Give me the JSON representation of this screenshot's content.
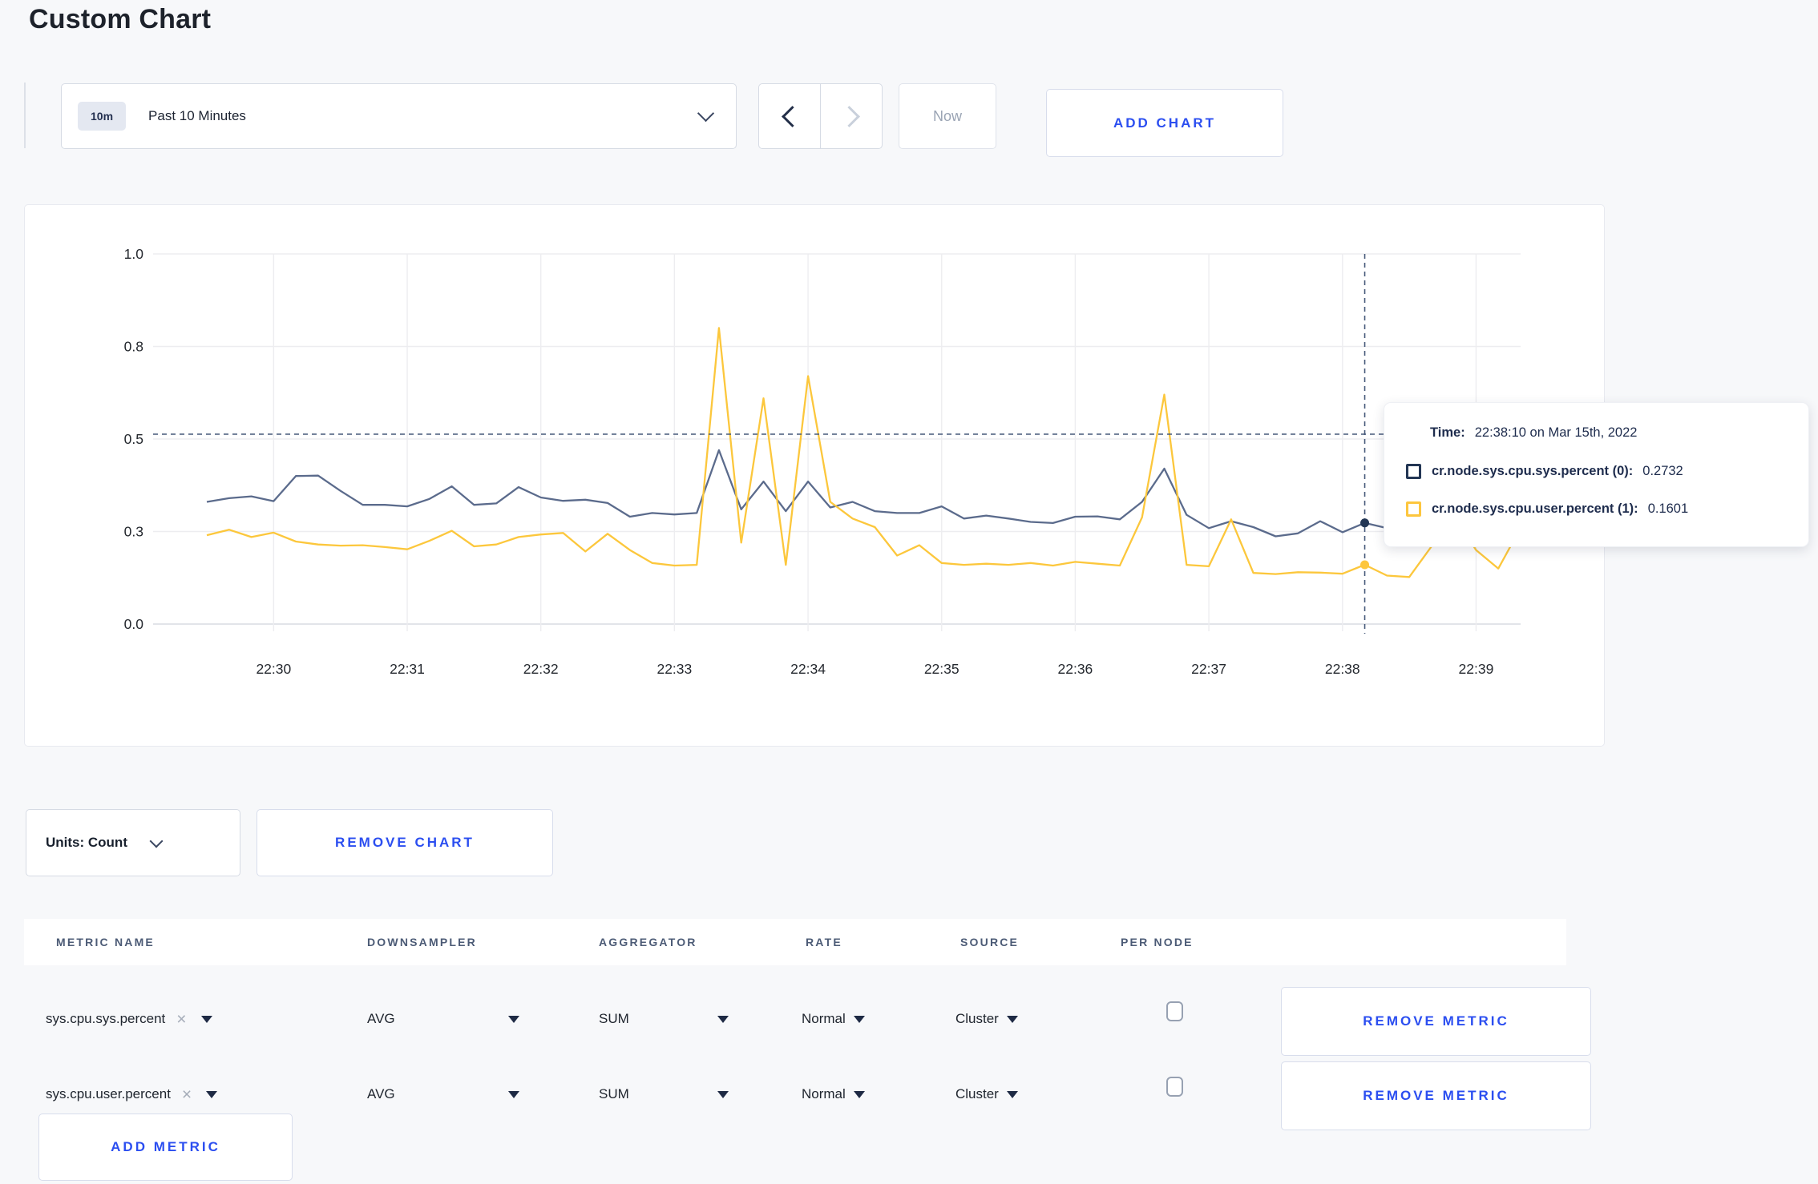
{
  "page": {
    "title": "Custom Chart"
  },
  "toolbar": {
    "time_badge": "10m",
    "time_label": "Past 10 Minutes",
    "now_label": "Now",
    "add_chart_label": "ADD CHART"
  },
  "chart_data": {
    "type": "line",
    "title": "",
    "xlabel": "",
    "ylabel": "",
    "ylim": [
      0,
      1
    ],
    "grid": true,
    "legend_position": "tooltip",
    "x_ticks": [
      "22:30",
      "22:31",
      "22:32",
      "22:33",
      "22:34",
      "22:35",
      "22:36",
      "22:37",
      "22:38",
      "22:39"
    ],
    "y_ticks": [
      {
        "v": 0,
        "label": "0.0"
      },
      {
        "v": 0.25,
        "label": "0.3"
      },
      {
        "v": 0.5,
        "label": "0.5"
      },
      {
        "v": 0.75,
        "label": "0.8"
      },
      {
        "v": 1.0,
        "label": "1.0"
      }
    ],
    "x_start": "22:29:30",
    "x_end": "22:39:20",
    "x_step_seconds": 10,
    "series": [
      {
        "name": "cr.node.sys.cpu.sys.percent (0)",
        "color": "#5b6b8c",
        "values": [
          0.33,
          0.34,
          0.345,
          0.332,
          0.4,
          0.401,
          0.36,
          0.322,
          0.322,
          0.318,
          0.338,
          0.372,
          0.322,
          0.326,
          0.37,
          0.342,
          0.333,
          0.336,
          0.327,
          0.29,
          0.3,
          0.296,
          0.3,
          0.47,
          0.31,
          0.385,
          0.305,
          0.385,
          0.315,
          0.33,
          0.305,
          0.3,
          0.3,
          0.318,
          0.285,
          0.293,
          0.285,
          0.276,
          0.273,
          0.29,
          0.291,
          0.283,
          0.33,
          0.42,
          0.295,
          0.259,
          0.278,
          0.262,
          0.237,
          0.245,
          0.278,
          0.248,
          0.2732,
          0.259,
          0.3,
          0.31,
          0.3,
          0.292,
          0.3,
          0.285
        ]
      },
      {
        "name": "cr.node.sys.cpu.user.percent (1)",
        "color": "#fcc73c",
        "values": [
          0.24,
          0.255,
          0.235,
          0.247,
          0.223,
          0.215,
          0.212,
          0.213,
          0.208,
          0.202,
          0.225,
          0.252,
          0.21,
          0.215,
          0.235,
          0.242,
          0.246,
          0.196,
          0.244,
          0.2,
          0.165,
          0.158,
          0.16,
          0.8,
          0.22,
          0.61,
          0.16,
          0.67,
          0.33,
          0.285,
          0.262,
          0.185,
          0.213,
          0.165,
          0.16,
          0.163,
          0.16,
          0.165,
          0.158,
          0.168,
          0.163,
          0.158,
          0.288,
          0.62,
          0.16,
          0.156,
          0.283,
          0.138,
          0.135,
          0.14,
          0.139,
          0.136,
          0.1601,
          0.131,
          0.127,
          0.21,
          0.295,
          0.2,
          0.15,
          0.26
        ]
      }
    ],
    "tooltip": {
      "time_label": "Time:",
      "time_value": "22:38:10 on Mar 15th, 2022",
      "crosshair_time": "22:38:10",
      "crosshair_y": 0.513,
      "rows": [
        {
          "label": "cr.node.sys.cpu.sys.percent (0):",
          "value": "0.2732",
          "v": 0.2732,
          "marker_color": "#233654"
        },
        {
          "label": "cr.node.sys.cpu.user.percent (1):",
          "value": "0.1601",
          "v": 0.1601,
          "marker_color": "#fdc63e"
        }
      ]
    }
  },
  "units_row": {
    "units_label": "Units: Count",
    "remove_chart_label": "REMOVE CHART"
  },
  "metrics_table": {
    "headers": [
      "METRIC NAME",
      "DOWNSAMPLER",
      "AGGREGATOR",
      "RATE",
      "SOURCE",
      "PER NODE"
    ],
    "rows": [
      {
        "metric": "sys.cpu.sys.percent",
        "downsampler": "AVG",
        "aggregator": "SUM",
        "rate": "Normal",
        "source": "Cluster",
        "per_node_checked": false,
        "remove_label": "REMOVE METRIC"
      },
      {
        "metric": "sys.cpu.user.percent",
        "downsampler": "AVG",
        "aggregator": "SUM",
        "rate": "Normal",
        "source": "Cluster",
        "per_node_checked": false,
        "remove_label": "REMOVE METRIC"
      }
    ],
    "add_metric_label": "ADD METRIC"
  }
}
